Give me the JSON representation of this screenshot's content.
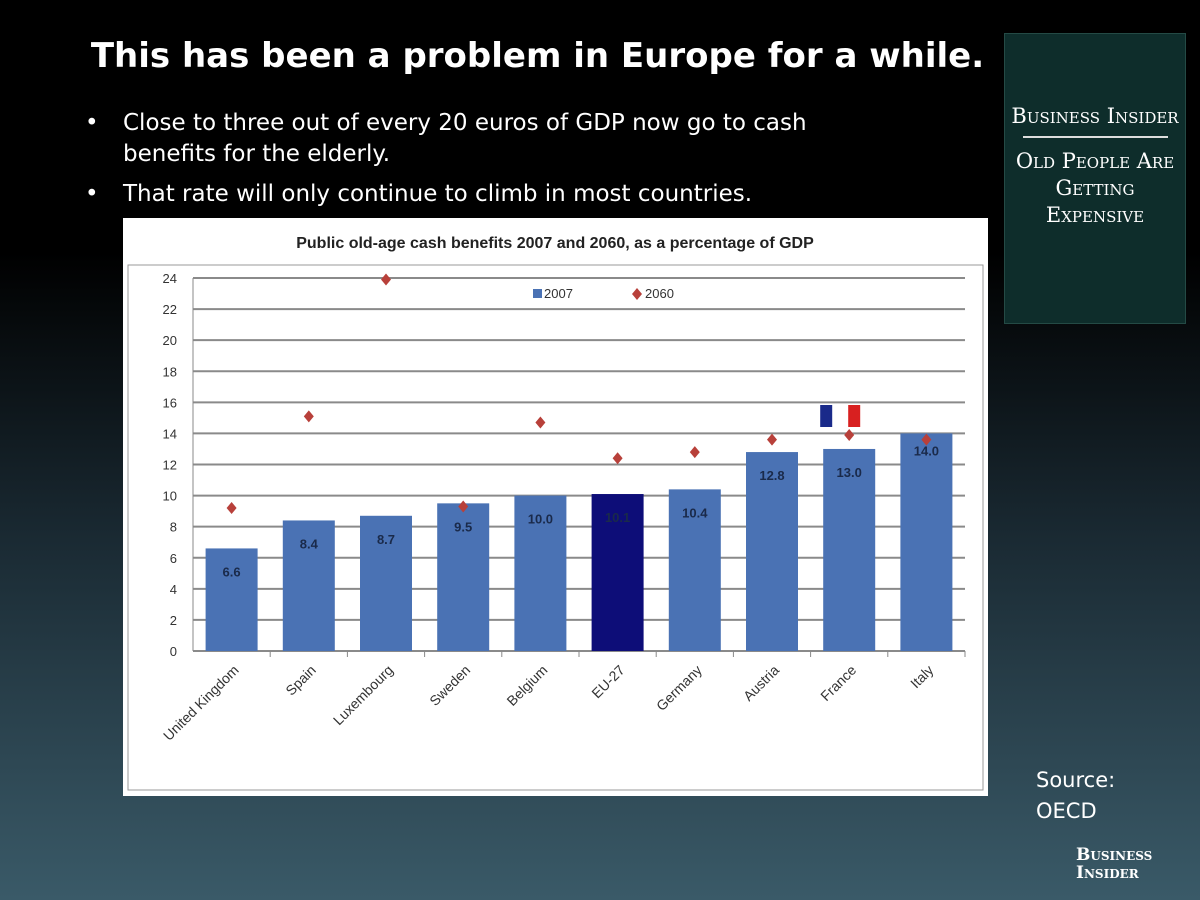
{
  "slide": {
    "title": "This has been a problem in Europe for a while.",
    "bullets": [
      "Close to three out of every 20 euros of GDP now go to cash benefits for the elderly.",
      "That rate will only continue to climb in most countries."
    ],
    "bullet_symbol": "•",
    "panel": {
      "brand": "Business Insider",
      "topic": "Old People Are Getting Expensive"
    },
    "source": "Source: OECD",
    "logo": "Business Insider",
    "colors": {
      "panel": "#0e2d2b",
      "bar": "#4a72b4",
      "eu_bar": "#0d0d78",
      "marker": "#b8403a"
    }
  },
  "chart_data": {
    "type": "bar",
    "title": "Public old-age cash benefits 2007 and 2060, as a percentage of GDP",
    "categories": [
      "United Kingdom",
      "Spain",
      "Luxembourg",
      "Sweden",
      "Belgium",
      "EU-27",
      "Germany",
      "Austria",
      "France",
      "Italy"
    ],
    "series": [
      {
        "name": "2007",
        "type": "bar",
        "values": [
          6.6,
          8.4,
          8.7,
          9.5,
          10.0,
          10.1,
          10.4,
          12.8,
          13.0,
          14.0
        ],
        "labels": [
          "6.6",
          "8.4",
          "8.7",
          "9.5",
          "10.0",
          "10.1",
          "10.4",
          "12.8",
          "13.0",
          "14.0"
        ]
      },
      {
        "name": "2060",
        "type": "scatter",
        "marker": "diamond",
        "values": [
          9.2,
          15.1,
          23.9,
          9.3,
          14.7,
          12.4,
          12.8,
          13.6,
          13.9,
          13.6
        ]
      }
    ],
    "ylim": [
      0,
      24
    ],
    "yticks": [
      0,
      2,
      4,
      6,
      8,
      10,
      12,
      14,
      16,
      18,
      20,
      22,
      24
    ],
    "grid": true,
    "legend": "top-center"
  }
}
